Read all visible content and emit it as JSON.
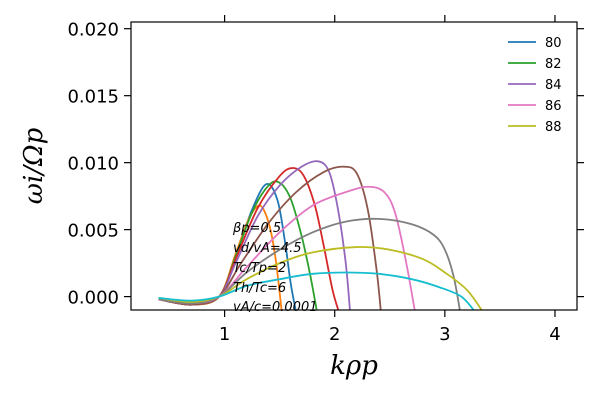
{
  "chart_data": {
    "type": "line",
    "title": "",
    "xlabel": "kρp",
    "ylabel": "ωi/Ωp",
    "xlim": [
      0.15,
      4.2
    ],
    "ylim": [
      -0.001,
      0.0205
    ],
    "xticks": [
      1,
      2,
      3,
      4
    ],
    "yticks": [
      0.0,
      0.005,
      0.01,
      0.015,
      0.02
    ],
    "xtick_labels": [
      "1",
      "2",
      "3",
      "4"
    ],
    "ytick_labels": [
      "0.000",
      "0.005",
      "0.010",
      "0.015",
      "0.020"
    ],
    "grid": false,
    "legend_position": "top-right",
    "legend": [
      {
        "name": "80",
        "color": "#1f77b4"
      },
      {
        "name": "82",
        "color": "#2ca02c"
      },
      {
        "name": "84",
        "color": "#9467bd"
      },
      {
        "name": "86",
        "color": "#e377c2"
      },
      {
        "name": "88",
        "color": "#bcbd22"
      }
    ],
    "annotations": [
      "βp=0.5",
      "vd/vA=4.5",
      "Tc/Tp=2",
      "Th/Tc=6",
      "vA/c=0.0001"
    ],
    "series": [
      {
        "color": "#1f77b4",
        "x": [
          0.4,
          0.7,
          0.95,
          1.1,
          1.25,
          1.38,
          1.48,
          1.55,
          1.6,
          1.65
        ],
        "y": [
          -0.0002,
          -0.0005,
          0.0,
          0.003,
          0.0065,
          0.0084,
          0.0072,
          0.004,
          0.001,
          -0.0012
        ]
      },
      {
        "color": "#ff7f0e",
        "x": [
          0.4,
          0.7,
          0.95,
          1.1,
          1.22,
          1.32,
          1.4,
          1.46,
          1.52
        ],
        "y": [
          -0.0002,
          -0.0006,
          0.0,
          0.0032,
          0.0058,
          0.0068,
          0.0055,
          0.003,
          -0.0012
        ]
      },
      {
        "color": "#2ca02c",
        "x": [
          0.4,
          0.7,
          0.95,
          1.1,
          1.25,
          1.4,
          1.5,
          1.6,
          1.7,
          1.78,
          1.84
        ],
        "y": [
          -0.0002,
          -0.0006,
          0.0,
          0.003,
          0.0063,
          0.0083,
          0.0085,
          0.0073,
          0.0045,
          0.0015,
          -0.0012
        ]
      },
      {
        "color": "#d62728",
        "x": [
          0.4,
          0.7,
          0.95,
          1.1,
          1.3,
          1.5,
          1.62,
          1.72,
          1.82,
          1.9,
          1.98,
          2.04
        ],
        "y": [
          -0.0002,
          -0.0006,
          0.0,
          0.0028,
          0.0066,
          0.009,
          0.0096,
          0.009,
          0.0068,
          0.0038,
          0.0005,
          -0.0012
        ]
      },
      {
        "color": "#9467bd",
        "x": [
          0.4,
          0.7,
          0.95,
          1.1,
          1.3,
          1.5,
          1.7,
          1.85,
          1.95,
          2.03,
          2.1,
          2.14
        ],
        "y": [
          -0.0002,
          -0.0006,
          0.0,
          0.0025,
          0.006,
          0.0083,
          0.0097,
          0.0101,
          0.0093,
          0.0065,
          0.0025,
          -0.0012
        ]
      },
      {
        "color": "#8c564b",
        "x": [
          0.4,
          0.7,
          0.95,
          1.15,
          1.4,
          1.65,
          1.9,
          2.08,
          2.2,
          2.3,
          2.38,
          2.42
        ],
        "y": [
          -0.0002,
          -0.0006,
          0.0,
          0.0025,
          0.0055,
          0.0078,
          0.0093,
          0.0097,
          0.0092,
          0.0065,
          0.002,
          -0.0012
        ]
      },
      {
        "color": "#e377c2",
        "x": [
          0.4,
          0.7,
          0.95,
          1.2,
          1.5,
          1.8,
          2.1,
          2.3,
          2.45,
          2.55,
          2.65,
          2.73
        ],
        "y": [
          -0.0002,
          -0.0005,
          0.0,
          0.0022,
          0.0048,
          0.0068,
          0.0078,
          0.0082,
          0.0078,
          0.0062,
          0.0025,
          -0.0012
        ]
      },
      {
        "color": "#7f7f7f",
        "x": [
          0.4,
          0.7,
          0.95,
          1.2,
          1.5,
          1.8,
          2.1,
          2.4,
          2.7,
          2.9,
          3.0,
          3.08,
          3.14
        ],
        "y": [
          -0.0002,
          -0.0005,
          0.0,
          0.0018,
          0.0035,
          0.0048,
          0.0056,
          0.0058,
          0.0054,
          0.0046,
          0.0035,
          0.0015,
          -0.0012
        ]
      },
      {
        "color": "#bcbd22",
        "x": [
          0.4,
          0.7,
          0.95,
          1.2,
          1.5,
          1.8,
          2.2,
          2.5,
          2.8,
          3.0,
          3.2,
          3.35
        ],
        "y": [
          -0.0001,
          -0.0004,
          0.0,
          0.0013,
          0.0025,
          0.0033,
          0.0037,
          0.0035,
          0.0028,
          0.0018,
          0.0005,
          -0.0012
        ]
      },
      {
        "color": "#17becf",
        "x": [
          0.4,
          0.7,
          0.95,
          1.2,
          1.5,
          1.8,
          2.1,
          2.4,
          2.7,
          2.95,
          3.15,
          3.28
        ],
        "y": [
          -0.0001,
          -0.0003,
          0.0,
          0.0008,
          0.0013,
          0.0017,
          0.0018,
          0.0017,
          0.0013,
          0.0007,
          0.0,
          -0.0012
        ]
      }
    ]
  }
}
